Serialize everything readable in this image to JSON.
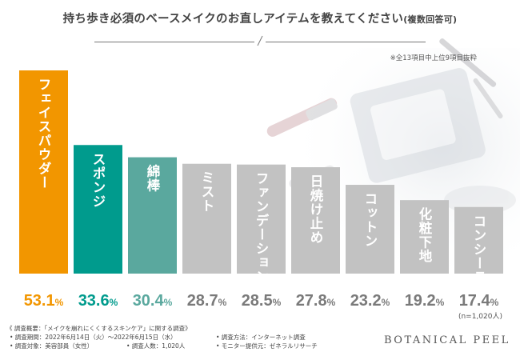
{
  "chart_data": {
    "type": "bar",
    "title": "持ち歩き必須のベースメイクのお直しアイテムを教えてください",
    "title_suffix": "(複数回答可)",
    "footnote": "※全13項目中上位9項目抜粋",
    "sample_size": "(n=1,020人)",
    "categories": [
      "フェイスパウダー",
      "スポンジ",
      "綿棒",
      "ミスト",
      "ファンデーション",
      "日焼け止め",
      "コットン",
      "化粧下地",
      "コンシーラー"
    ],
    "values": [
      53.1,
      33.6,
      30.4,
      28.7,
      28.5,
      27.8,
      23.2,
      19.2,
      17.4
    ],
    "value_labels": [
      "53.1%",
      "33.6%",
      "30.4%",
      "28.7%",
      "28.5%",
      "27.8%",
      "23.2%",
      "19.2%",
      "17.4%"
    ],
    "bar_colors": [
      "#f29600",
      "#009b8d",
      "#5aa89e",
      "#c2c2c2",
      "#c2c2c2",
      "#c2c2c2",
      "#c2c2c2",
      "#c2c2c2",
      "#c2c2c2"
    ],
    "label_colors": [
      "#f29600",
      "#009b8d",
      "#5aa89e",
      "#7a7a7a",
      "#7a7a7a",
      "#7a7a7a",
      "#7a7a7a",
      "#7a7a7a",
      "#7a7a7a"
    ],
    "ylim": [
      0,
      53.1
    ],
    "grid": false,
    "legend": "none"
  },
  "survey": {
    "heading": "《 調査概要：「メイクを崩れにくくするスキンケア」に関する調査》",
    "period": "• 調査期間：2022年6月14日（火）〜2022年6月15日（水）",
    "method": "• 調査方法：インターネット調査",
    "target": "• 調査対象：美容部員（女性）",
    "count": "• 調査人数：1,020人",
    "provider": "• モニター提供元：ゼネラルリサーチ"
  },
  "brand": "BOTANICAL PEEL"
}
